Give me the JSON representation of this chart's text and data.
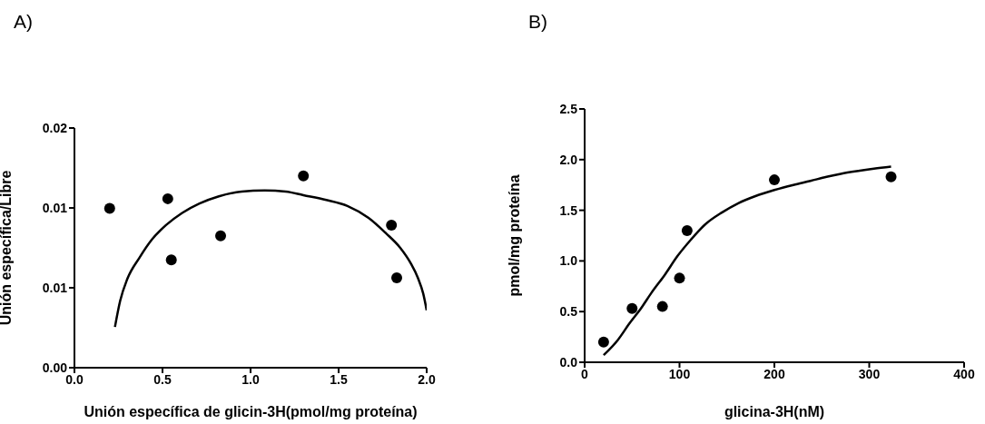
{
  "chart_data": [
    {
      "type": "scatter",
      "title": "A)",
      "xlabel": "Unión específica de glicin-3H(pmol/mg proteína)",
      "ylabel": "Unión específica/Libre",
      "xlim": [
        0,
        2.0
      ],
      "xticks": [
        {
          "value": 0,
          "label": "0.0"
        },
        0.5,
        {
          "value": 1,
          "label": "1.0"
        },
        1.5,
        {
          "value": 2,
          "label": "2.0"
        }
      ],
      "ylim": [
        0,
        0.02
      ],
      "yticks": [
        {
          "value": 0,
          "label": "0.00"
        },
        {
          "value": 0.00667,
          "label": "0.01"
        },
        {
          "value": 0.01333,
          "label": "0.01"
        },
        0.02
      ],
      "grid": false,
      "legend": false,
      "series": [
        {
          "type": "scatter",
          "marker": "circle",
          "color": "#000000",
          "x": [
            0.2,
            0.53,
            0.55,
            0.83,
            1.3,
            1.8,
            1.83
          ],
          "values": [
            0.0133,
            0.0141,
            0.009,
            0.011,
            0.016,
            0.0119,
            0.0075
          ]
        },
        {
          "type": "line",
          "marker": "none",
          "line_style": "solid",
          "color": "#000000",
          "x": [
            0.23,
            0.26,
            0.3,
            0.37,
            0.44,
            0.52,
            0.61,
            0.71,
            0.82,
            0.95,
            1.08,
            1.2,
            1.3,
            1.43,
            1.55,
            1.67,
            1.77,
            1.85,
            1.91,
            1.95,
            1.98,
            2.0
          ],
          "values": [
            0.0034,
            0.0056,
            0.0074,
            0.0092,
            0.0107,
            0.0119,
            0.0129,
            0.0137,
            0.0143,
            0.0147,
            0.0148,
            0.0147,
            0.0144,
            0.014,
            0.0135,
            0.0125,
            0.0112,
            0.01,
            0.0087,
            0.0075,
            0.0062,
            0.0048
          ]
        }
      ]
    },
    {
      "type": "scatter",
      "title": "B)",
      "xlabel": "glicina-3H(nM)",
      "ylabel": "pmol/mg proteína",
      "xlim": [
        0,
        400
      ],
      "xticks": [
        0,
        100,
        200,
        300,
        400
      ],
      "ylim": [
        0,
        2.5
      ],
      "yticks": [
        {
          "value": 0,
          "label": "0.0"
        },
        0.5,
        {
          "value": 1,
          "label": "1.0"
        },
        1.5,
        {
          "value": 2,
          "label": "2.0"
        },
        2.5
      ],
      "grid": false,
      "legend": false,
      "series": [
        {
          "type": "scatter",
          "marker": "circle",
          "color": "#000000",
          "x": [
            20,
            50,
            82,
            100,
            108,
            200,
            323
          ],
          "values": [
            0.2,
            0.53,
            0.55,
            0.83,
            1.3,
            1.8,
            1.83
          ]
        },
        {
          "type": "line",
          "marker": "none",
          "line_style": "solid",
          "color": "#000000",
          "x": [
            20,
            35,
            47,
            60,
            70,
            85,
            98,
            112,
            127,
            145,
            162,
            180,
            200,
            220,
            238,
            255,
            270,
            290,
            305,
            323
          ],
          "values": [
            0.07,
            0.22,
            0.38,
            0.54,
            0.68,
            0.87,
            1.05,
            1.21,
            1.36,
            1.48,
            1.57,
            1.64,
            1.7,
            1.75,
            1.79,
            1.83,
            1.86,
            1.89,
            1.91,
            1.93
          ]
        }
      ]
    }
  ]
}
